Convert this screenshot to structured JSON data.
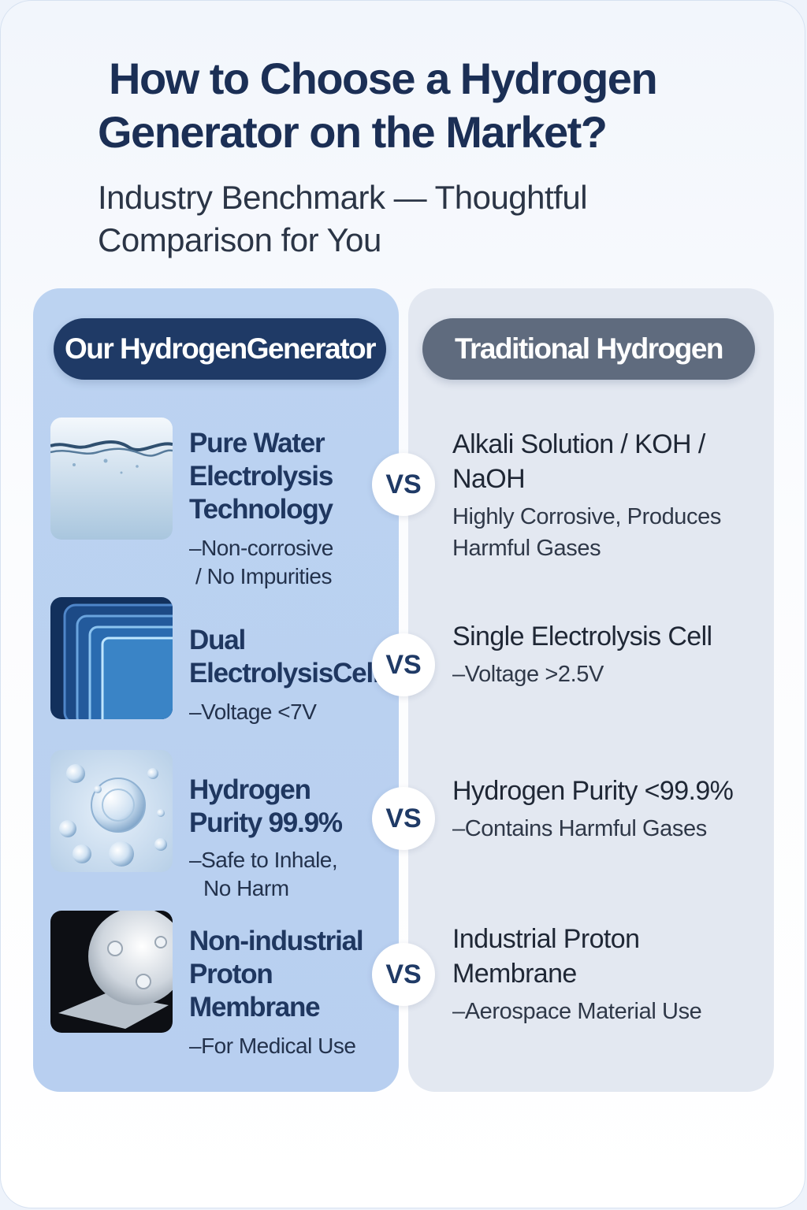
{
  "header": {
    "title_line1": "How to Choose a Hydrogen",
    "title_line2": "Generator on the Market?",
    "subtitle_line1": "Industry Benchmark — Thoughtful",
    "subtitle_line2": "Comparison for You"
  },
  "columns": {
    "left_label": "Our HydrogenGenerator",
    "right_label": "Traditional Hydrogen"
  },
  "vs_label": "VS",
  "rows": [
    {
      "icon": "water-surface-icon",
      "ours_title": "Pure Water Electrolysis Technology",
      "ours_desc_line1": "–Non-corrosive",
      "ours_desc_line2": "/ No Impurities",
      "theirs_title": "Alkali Solution / KOH / NaOH",
      "theirs_desc": "Highly Corrosive, Produces Harmful Gases"
    },
    {
      "icon": "electrolysis-cell-icon",
      "ours_title": "Dual ElectrolysisCell",
      "ours_desc_line1": "–Voltage <7V",
      "ours_desc_line2": "",
      "theirs_title": "Single Electrolysis Cell",
      "theirs_desc": "–Voltage >2.5V"
    },
    {
      "icon": "bubbles-icon",
      "ours_title": "Hydrogen Purity 99.9%",
      "ours_desc_line1": "–Safe to Inhale,",
      "ours_desc_line2": "No Harm",
      "theirs_title": "Hydrogen Purity <99.9%",
      "theirs_desc": "–Contains Harmful Gases"
    },
    {
      "icon": "proton-membrane-icon",
      "ours_title": "Non-industrial Proton Membrane",
      "ours_desc_line1": "–For Medical Use",
      "ours_desc_line2": "",
      "theirs_title": "Industrial Proton Membrane",
      "theirs_desc": "–Aerospace Material Use"
    }
  ],
  "colors": {
    "navy": "#1f3a66",
    "slate": "#5f6b7e",
    "left_panel": "#bcd3f1",
    "right_panel": "#e3e8f1"
  }
}
